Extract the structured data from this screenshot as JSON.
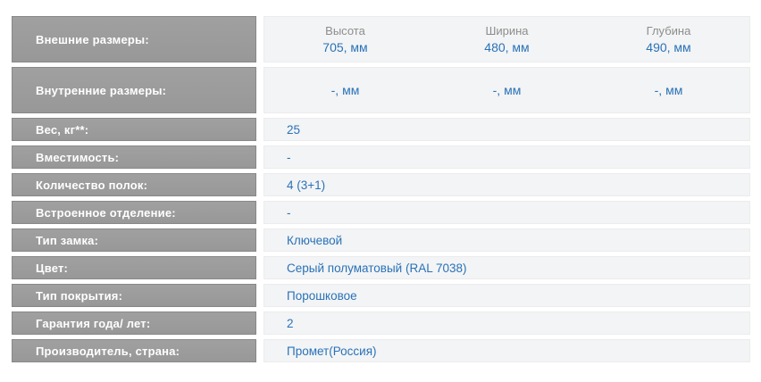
{
  "colors": {
    "label_bg": "#9c9c9c",
    "label_text": "#ffffff",
    "value_bg": "#f3f4f5",
    "value_text": "#2a72b8",
    "dim_header_text": "#8d8d8d"
  },
  "table": {
    "dimension_headers": [
      "Высота",
      "Ширина",
      "Глубина"
    ],
    "rows": [
      {
        "label": "Внешние размеры:",
        "values": [
          "705, мм",
          "480, мм",
          "490, мм"
        ]
      },
      {
        "label": "Внутренние размеры:",
        "values": [
          "-, мм",
          "-, мм",
          "-, мм"
        ]
      },
      {
        "label": "Вес, кг**:",
        "value": "25"
      },
      {
        "label": "Вместимость:",
        "value": "-"
      },
      {
        "label": "Количество полок:",
        "value": "4 (3+1)"
      },
      {
        "label": "Встроенное отделение:",
        "value": "-"
      },
      {
        "label": "Тип замка:",
        "value": "Ключевой"
      },
      {
        "label": "Цвет:",
        "value": "Серый полуматовый (RAL 7038)"
      },
      {
        "label": "Тип покрытия:",
        "value": "Порошковое"
      },
      {
        "label": "Гарантия года/ лет:",
        "value": "2"
      },
      {
        "label": "Производитель, страна:",
        "value": "Промет(Россия)"
      }
    ]
  }
}
